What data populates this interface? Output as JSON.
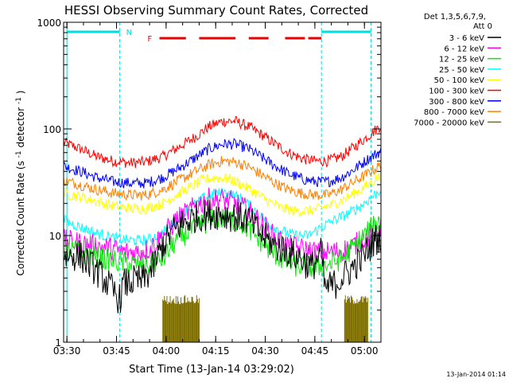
{
  "chart_data": {
    "type": "line",
    "title": "HESSI Observing Summary Count Rates, Corrected",
    "xlabel": "Start Time (13-Jan-14 03:29:02)",
    "ylabel_main": "Corrected Count Rate (s",
    "ylabel_sup1": "-1",
    "ylabel_mid": " detector",
    "ylabel_sup2": "-1",
    "ylabel_end": ")",
    "yscale": "log",
    "ylim": [
      1,
      1000
    ],
    "xlim_minutes": [
      0,
      96
    ],
    "x_ticks": [
      "03:30",
      "03:45",
      "04:00",
      "04:15",
      "04:30",
      "04:45",
      "05:00"
    ],
    "y_ticks": [
      "1",
      "10",
      "100",
      "1000"
    ],
    "legend_header": [
      "Det 1,3,5,6,7,9,",
      "Att 0"
    ],
    "footer_date": "13-Jan-2014 01:14",
    "annotations": {
      "night_label": "N",
      "flare_label": "F"
    },
    "legend_placement": "right, outside plot",
    "grid": false,
    "night_intervals": [
      [
        "03:30",
        "03:46"
      ],
      [
        "04:47",
        "05:02"
      ]
    ],
    "flare_intervals": [
      [
        "03:58",
        "04:06"
      ],
      [
        "04:10",
        "04:21"
      ],
      [
        "04:25",
        "04:31"
      ],
      [
        "04:36",
        "04:42"
      ],
      [
        "04:43",
        "04:47"
      ]
    ],
    "series": [
      {
        "name": "3 - 6 keV",
        "color": "#000000",
        "points": [
          [
            0,
            6.5
          ],
          [
            5,
            6.5
          ],
          [
            9,
            5
          ],
          [
            12,
            4
          ],
          [
            15,
            3
          ],
          [
            17,
            2.5
          ],
          [
            18,
            3.5
          ],
          [
            22,
            3.8
          ],
          [
            24,
            3.8
          ],
          [
            27,
            5
          ],
          [
            30,
            8
          ],
          [
            33,
            11
          ],
          [
            36,
            13
          ],
          [
            40,
            15
          ],
          [
            44,
            16
          ],
          [
            48,
            16
          ],
          [
            52,
            15
          ],
          [
            56,
            14
          ],
          [
            60,
            10
          ],
          [
            64,
            8
          ],
          [
            68,
            7
          ],
          [
            72,
            6
          ],
          [
            75,
            5
          ],
          [
            78,
            7
          ],
          [
            79,
            3.2
          ],
          [
            82,
            3.5
          ],
          [
            86,
            4.5
          ],
          [
            90,
            6
          ],
          [
            94,
            9
          ],
          [
            96,
            10
          ]
        ]
      },
      {
        "name": "6 - 12 keV",
        "color": "#ff00ff",
        "points": [
          [
            0,
            9
          ],
          [
            5,
            8.5
          ],
          [
            10,
            8
          ],
          [
            15,
            7.5
          ],
          [
            18,
            7
          ],
          [
            22,
            7
          ],
          [
            26,
            7.5
          ],
          [
            30,
            10
          ],
          [
            34,
            14
          ],
          [
            38,
            17
          ],
          [
            40,
            19
          ],
          [
            44,
            22
          ],
          [
            48,
            22
          ],
          [
            52,
            20
          ],
          [
            56,
            17
          ],
          [
            60,
            13
          ],
          [
            64,
            9.5
          ],
          [
            68,
            8
          ],
          [
            72,
            7.5
          ],
          [
            76,
            7
          ],
          [
            79,
            7
          ],
          [
            82,
            7
          ],
          [
            86,
            7.5
          ],
          [
            90,
            9
          ],
          [
            94,
            11
          ],
          [
            96,
            12
          ]
        ]
      },
      {
        "name": "12 - 25 keV",
        "color": "#00ee00",
        "points": [
          [
            0,
            7.5
          ],
          [
            5,
            7
          ],
          [
            10,
            6.2
          ],
          [
            15,
            5.8
          ],
          [
            20,
            5.4
          ],
          [
            25,
            5.2
          ],
          [
            30,
            6
          ],
          [
            34,
            9
          ],
          [
            38,
            11
          ],
          [
            42,
            13
          ],
          [
            46,
            14.5
          ],
          [
            50,
            14.5
          ],
          [
            54,
            13
          ],
          [
            58,
            10
          ],
          [
            62,
            7.5
          ],
          [
            66,
            6
          ],
          [
            70,
            5.2
          ],
          [
            75,
            5
          ],
          [
            79,
            5.2
          ],
          [
            84,
            6
          ],
          [
            88,
            8
          ],
          [
            92,
            11
          ],
          [
            96,
            14
          ]
        ]
      },
      {
        "name": "25 - 50 keV",
        "color": "#00ffff",
        "points": [
          [
            0,
            14
          ],
          [
            5,
            12
          ],
          [
            10,
            10.5
          ],
          [
            15,
            9.5
          ],
          [
            20,
            9
          ],
          [
            25,
            9
          ],
          [
            30,
            10.5
          ],
          [
            34,
            14
          ],
          [
            38,
            18
          ],
          [
            42,
            22
          ],
          [
            46,
            25
          ],
          [
            50,
            25
          ],
          [
            54,
            22
          ],
          [
            58,
            17
          ],
          [
            62,
            13
          ],
          [
            66,
            11
          ],
          [
            70,
            10
          ],
          [
            74,
            10
          ],
          [
            78,
            12
          ],
          [
            82,
            14
          ],
          [
            86,
            16
          ],
          [
            90,
            19
          ],
          [
            94,
            24
          ],
          [
            96,
            27
          ]
        ]
      },
      {
        "name": "50 - 100 keV",
        "color": "#ffff00",
        "points": [
          [
            0,
            25
          ],
          [
            5,
            23
          ],
          [
            10,
            21
          ],
          [
            15,
            19
          ],
          [
            20,
            18
          ],
          [
            25,
            18
          ],
          [
            30,
            20
          ],
          [
            34,
            24
          ],
          [
            38,
            28
          ],
          [
            42,
            33
          ],
          [
            46,
            35
          ],
          [
            50,
            34
          ],
          [
            54,
            30
          ],
          [
            58,
            25
          ],
          [
            62,
            21
          ],
          [
            66,
            18
          ],
          [
            70,
            17
          ],
          [
            74,
            17
          ],
          [
            78,
            18
          ],
          [
            82,
            20
          ],
          [
            86,
            23
          ],
          [
            90,
            27
          ],
          [
            94,
            33
          ],
          [
            96,
            37
          ]
        ]
      },
      {
        "name": "100 - 300 keV",
        "color": "#ff0000",
        "points": [
          [
            0,
            75
          ],
          [
            5,
            65
          ],
          [
            10,
            55
          ],
          [
            15,
            50
          ],
          [
            20,
            48
          ],
          [
            25,
            49
          ],
          [
            30,
            55
          ],
          [
            35,
            68
          ],
          [
            40,
            85
          ],
          [
            44,
            105
          ],
          [
            48,
            118
          ],
          [
            52,
            118
          ],
          [
            56,
            105
          ],
          [
            60,
            88
          ],
          [
            64,
            72
          ],
          [
            68,
            60
          ],
          [
            72,
            53
          ],
          [
            76,
            50
          ],
          [
            80,
            50
          ],
          [
            84,
            55
          ],
          [
            88,
            68
          ],
          [
            92,
            85
          ],
          [
            96,
            108
          ]
        ]
      },
      {
        "name": "300 - 800 keV",
        "color": "#0000ff",
        "points": [
          [
            0,
            45
          ],
          [
            5,
            40
          ],
          [
            10,
            35
          ],
          [
            15,
            32
          ],
          [
            20,
            31
          ],
          [
            25,
            31
          ],
          [
            30,
            35
          ],
          [
            35,
            43
          ],
          [
            40,
            54
          ],
          [
            44,
            65
          ],
          [
            48,
            72
          ],
          [
            52,
            72
          ],
          [
            56,
            65
          ],
          [
            60,
            54
          ],
          [
            64,
            45
          ],
          [
            68,
            38
          ],
          [
            72,
            34
          ],
          [
            76,
            32
          ],
          [
            80,
            32
          ],
          [
            84,
            35
          ],
          [
            88,
            42
          ],
          [
            92,
            52
          ],
          [
            96,
            62
          ]
        ]
      },
      {
        "name": "800 - 7000 keV",
        "color": "#ff8000",
        "points": [
          [
            0,
            33
          ],
          [
            5,
            30
          ],
          [
            10,
            27
          ],
          [
            15,
            25
          ],
          [
            20,
            24
          ],
          [
            25,
            24
          ],
          [
            30,
            27
          ],
          [
            35,
            33
          ],
          [
            40,
            40
          ],
          [
            44,
            46
          ],
          [
            48,
            50
          ],
          [
            52,
            49
          ],
          [
            56,
            44
          ],
          [
            60,
            37
          ],
          [
            64,
            31
          ],
          [
            68,
            27
          ],
          [
            72,
            25
          ],
          [
            76,
            24
          ],
          [
            80,
            24
          ],
          [
            84,
            27
          ],
          [
            88,
            32
          ],
          [
            92,
            38
          ],
          [
            96,
            46
          ]
        ]
      },
      {
        "name": "7000 - 20000 keV",
        "color": "#807000",
        "points": []
      }
    ],
    "high_energy_bursts": [
      [
        30,
        41
      ],
      [
        85,
        92
      ]
    ]
  }
}
